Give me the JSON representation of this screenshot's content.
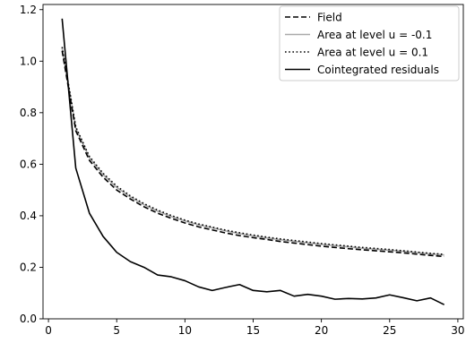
{
  "chart_data": {
    "type": "line",
    "title": "",
    "xlabel": "",
    "ylabel": "",
    "xlim": [
      -0.4,
      30.4
    ],
    "ylim": [
      0.0,
      1.22
    ],
    "xticks": [
      0,
      5,
      10,
      15,
      20,
      25,
      30
    ],
    "yticks": [
      0.0,
      0.2,
      0.4,
      0.6,
      0.8,
      1.0,
      1.2
    ],
    "xtick_labels": [
      "0",
      "5",
      "10",
      "15",
      "20",
      "25",
      "30"
    ],
    "ytick_labels": [
      "0.0",
      "0.2",
      "0.4",
      "0.6",
      "0.8",
      "1.0",
      "1.2"
    ],
    "grid": false,
    "legend_position": "top-right",
    "x": [
      1,
      2,
      3,
      4,
      5,
      6,
      7,
      8,
      9,
      10,
      11,
      12,
      13,
      14,
      15,
      16,
      17,
      18,
      19,
      20,
      21,
      22,
      23,
      24,
      25,
      26,
      27,
      28,
      29
    ],
    "series": [
      {
        "name": "Field",
        "style": "dashed",
        "color": "#000000",
        "values": [
          1.04,
          0.73,
          0.615,
          0.55,
          0.5,
          0.465,
          0.435,
          0.41,
          0.39,
          0.372,
          0.357,
          0.345,
          0.333,
          0.323,
          0.315,
          0.308,
          0.3,
          0.294,
          0.288,
          0.282,
          0.277,
          0.272,
          0.268,
          0.264,
          0.26,
          0.256,
          0.251,
          0.246,
          0.242
        ]
      },
      {
        "name": "Area at level u = -0.1",
        "style": "solid",
        "color": "#aaaaaa",
        "values": [
          1.05,
          0.74,
          0.625,
          0.56,
          0.51,
          0.473,
          0.443,
          0.418,
          0.397,
          0.38,
          0.365,
          0.353,
          0.341,
          0.331,
          0.322,
          0.314,
          0.307,
          0.301,
          0.295,
          0.289,
          0.284,
          0.279,
          0.274,
          0.27,
          0.266,
          0.262,
          0.257,
          0.252,
          0.248
        ]
      },
      {
        "name": "Area at level u = 0.1",
        "style": "dotted",
        "color": "#000000",
        "values": [
          1.055,
          0.745,
          0.63,
          0.565,
          0.515,
          0.477,
          0.447,
          0.422,
          0.401,
          0.383,
          0.368,
          0.356,
          0.344,
          0.334,
          0.325,
          0.317,
          0.31,
          0.304,
          0.298,
          0.292,
          0.287,
          0.282,
          0.277,
          0.273,
          0.269,
          0.264,
          0.259,
          0.254,
          0.25
        ]
      },
      {
        "name": "Cointegrated residuals",
        "style": "solid",
        "color": "#000000",
        "values": [
          1.165,
          0.585,
          0.41,
          0.32,
          0.258,
          0.222,
          0.2,
          0.17,
          0.163,
          0.148,
          0.124,
          0.11,
          0.122,
          0.133,
          0.11,
          0.105,
          0.11,
          0.088,
          0.095,
          0.088,
          0.076,
          0.079,
          0.077,
          0.081,
          0.093,
          0.082,
          0.07,
          0.081,
          0.055
        ]
      }
    ]
  }
}
